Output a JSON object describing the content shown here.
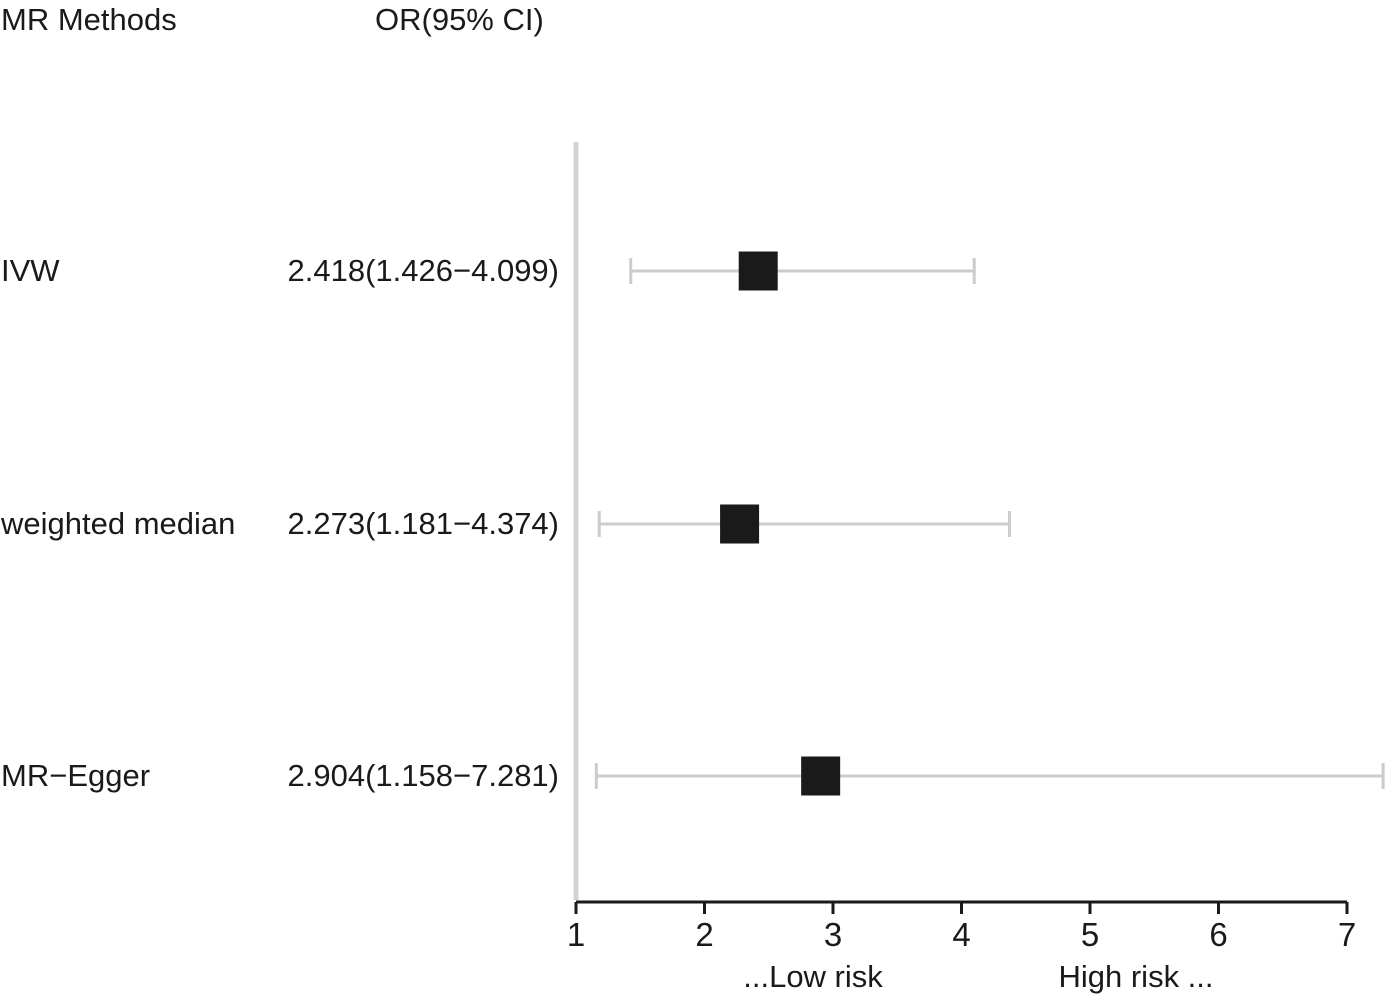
{
  "header": {
    "method_label": "MR Methods",
    "or_label": "OR(95% CI)"
  },
  "rows": [
    {
      "method": "IVW",
      "or_text": "2.418(1.426−4.099)"
    },
    {
      "method": "weighted median",
      "or_text": "2.273(1.181−4.374)"
    },
    {
      "method": "MR−Egger",
      "or_text": "2.904(1.158−7.281)"
    }
  ],
  "risk_labels": {
    "low": "...Low risk",
    "high": "High risk ..."
  },
  "colors": {
    "ci_line": "#cccccc",
    "ref_line": "#d3d3d3",
    "marker": "#1a1a1a",
    "axis": "#1a1a1a"
  },
  "chart_data": {
    "type": "forest",
    "x_axis": {
      "min": 1,
      "max": 7,
      "ticks": [
        1,
        2,
        3,
        4,
        5,
        6,
        7
      ],
      "reference": 1
    },
    "series": [
      {
        "label": "IVW",
        "or": 2.418,
        "lower": 1.426,
        "upper": 4.099
      },
      {
        "label": "weighted median",
        "or": 2.273,
        "lower": 1.181,
        "upper": 4.374
      },
      {
        "label": "MR−Egger",
        "or": 2.904,
        "lower": 1.158,
        "upper": 7.281
      }
    ]
  }
}
